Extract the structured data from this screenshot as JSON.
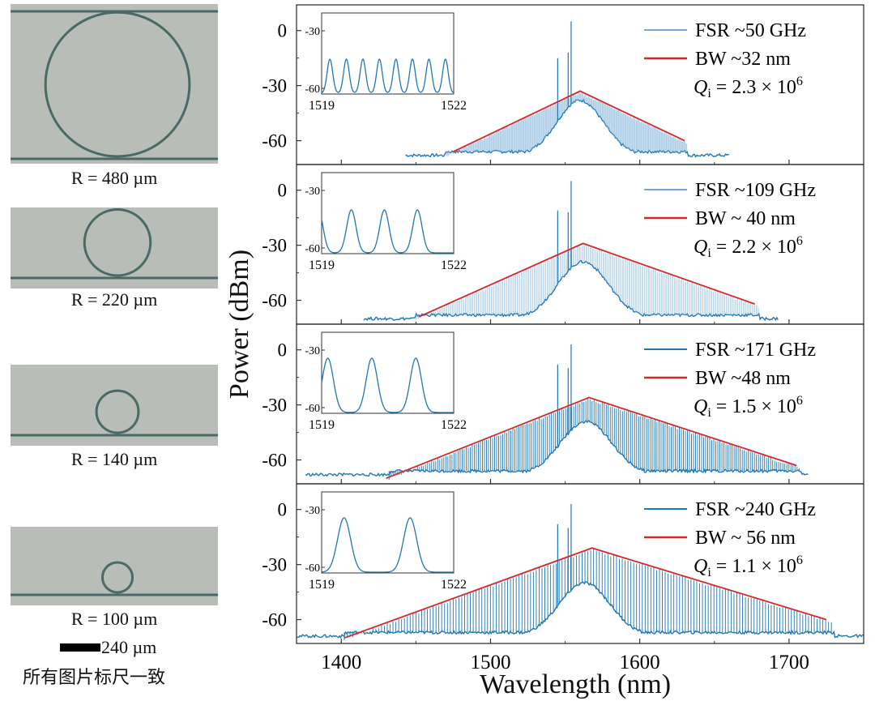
{
  "micrographs": [
    {
      "radius_um": 480,
      "label": "R = 480 µm"
    },
    {
      "radius_um": 220,
      "label": "R = 220 µm"
    },
    {
      "radius_um": 140,
      "label": "R = 140 µm"
    },
    {
      "radius_um": 100,
      "label": "R = 100 µm"
    }
  ],
  "scale_bar": {
    "length_label": "240 µm",
    "note": "所有图片标尺一致"
  },
  "colors": {
    "spectrum": "#1f77b4",
    "spectrum_light": "#6fa8d6",
    "envelope": "#d62728",
    "frame": "#333333",
    "micro_bg": "#b9bdb7",
    "ring": "#4a6a68"
  },
  "chart_data": {
    "type": "line",
    "title": "",
    "xlabel": "Wavelength (nm)",
    "ylabel": "Power (dBm)",
    "xlim": [
      1370,
      1750
    ],
    "x_ticks": [
      1400,
      1500,
      1600,
      1700
    ],
    "y_ticks": [
      0,
      -30,
      -60
    ],
    "panels": [
      {
        "legend": {
          "series": "FSR ~50 GHz",
          "envelope": "BW ~32 nm",
          "q_sym": "Q",
          "q_sub": "i",
          "q_val": "= 2.3 × 10",
          "q_exp": "6"
        },
        "ylim": [
          -73,
          14
        ],
        "spectrum": {
          "range": [
            1443,
            1660
          ],
          "floor": -68,
          "comb_start": 1470,
          "comb_end": 1632,
          "peak_x": 1560,
          "peak_y": -33,
          "spacing_nm": 0.4,
          "hump_height": 30,
          "hump_center": 1560,
          "hump_width": 22,
          "pump_lines": [
            [
              1545,
              -15
            ],
            [
              1552,
              -12
            ],
            [
              1554,
              5
            ]
          ]
        },
        "envelope": {
          "x": [
            1475,
            1560,
            1630
          ],
          "y": [
            -66,
            -33,
            -60
          ]
        },
        "inset": {
          "x_ticks": [
            "1519",
            "1522"
          ],
          "y_ticks": [
            "-30",
            "-60"
          ],
          "n_peaks": 8,
          "peak_width": 0.03
        }
      },
      {
        "legend": {
          "series": "FSR ~109 GHz",
          "envelope": "BW ~ 40 nm",
          "q_sym": "Q",
          "q_sub": "i",
          "q_val": "= 2.2 × 10",
          "q_exp": "6"
        },
        "ylim": [
          -73,
          14
        ],
        "spectrum": {
          "range": [
            1415,
            1693
          ],
          "floor": -70,
          "comb_start": 1450,
          "comb_end": 1680,
          "peak_x": 1562,
          "peak_y": -29,
          "spacing_nm": 0.87,
          "hump_height": 31,
          "hump_center": 1562,
          "hump_width": 24,
          "pump_lines": [
            [
              1545,
              -11
            ],
            [
              1552,
              -12
            ],
            [
              1554,
              5
            ]
          ]
        },
        "envelope": {
          "x": [
            1452,
            1562,
            1677
          ],
          "y": [
            -69,
            -29,
            -62
          ]
        },
        "inset": {
          "x_ticks": [
            "1519",
            "1522"
          ],
          "y_ticks": [
            "-30",
            "-60"
          ],
          "n_peaks": 4,
          "peak_width": 0.05
        }
      },
      {
        "legend": {
          "series": "FSR ~171 GHz",
          "envelope": "BW ~48 nm",
          "q_sym": "Q",
          "q_sub": "i",
          "q_val": "= 1.5 × 10",
          "q_exp": "6"
        },
        "ylim": [
          -73,
          14
        ],
        "spectrum": {
          "range": [
            1376,
            1713
          ],
          "floor": -68,
          "comb_start": 1432,
          "comb_end": 1708,
          "peak_x": 1566,
          "peak_y": -26,
          "spacing_nm": 1.36,
          "hump_height": 29,
          "hump_center": 1564,
          "hump_width": 24,
          "pump_lines": [
            [
              1545,
              -8
            ],
            [
              1552,
              -10
            ],
            [
              1554,
              3
            ]
          ]
        },
        "envelope": {
          "x": [
            1430,
            1566,
            1705
          ],
          "y": [
            -70,
            -26,
            -63
          ]
        },
        "inset": {
          "x_ticks": [
            "1519",
            "1522"
          ],
          "y_ticks": [
            "-30",
            "-60"
          ],
          "n_peaks": 3,
          "peak_width": 0.06
        }
      },
      {
        "legend": {
          "series": "FSR ~240 GHz",
          "envelope": "BW ~ 56 nm",
          "q_sym": "Q",
          "q_sub": "i",
          "q_val": "= 1.1 × 10",
          "q_exp": "6"
        },
        "ylim": [
          -73,
          14
        ],
        "spectrum": {
          "range": [
            1370,
            1750
          ],
          "floor": -69,
          "comb_start": 1402,
          "comb_end": 1730,
          "peak_x": 1568,
          "peak_y": -21,
          "spacing_nm": 1.92,
          "hump_height": 29,
          "hump_center": 1563,
          "hump_width": 24,
          "pump_lines": [
            [
              1545,
              -8
            ],
            [
              1552,
              -10
            ],
            [
              1554,
              3
            ]
          ]
        },
        "envelope": {
          "x": [
            1402,
            1568,
            1725
          ],
          "y": [
            -70,
            -21,
            -60
          ]
        },
        "inset": {
          "x_ticks": [
            "1519",
            "1522"
          ],
          "y_ticks": [
            "-30",
            "-60"
          ],
          "n_peaks": 2,
          "peak_width": 0.07
        }
      }
    ]
  }
}
